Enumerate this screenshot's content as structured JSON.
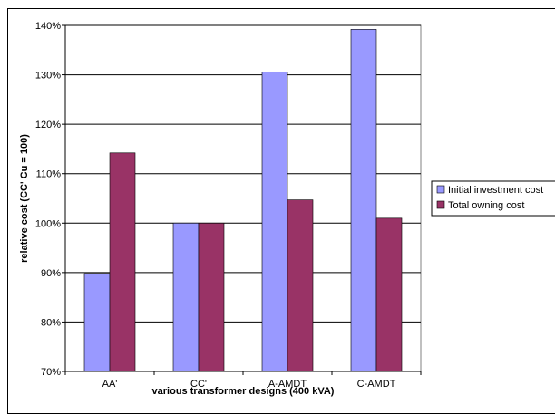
{
  "chart_data": {
    "type": "bar",
    "title": "",
    "xlabel": "various transformer designs (400 kVA)",
    "ylabel": "relative cost (CC' Cu = 100)",
    "categories": [
      "AA'",
      "CC'",
      "A-AMDT",
      "C-AMDT"
    ],
    "yticks": [
      "70%",
      "80%",
      "90%",
      "100%",
      "110%",
      "120%",
      "130%",
      "140%"
    ],
    "ylim": [
      70,
      140
    ],
    "grid": "horizontal",
    "legend_position": "right",
    "series": [
      {
        "name": "Initial investment cost",
        "color": "#9999ff",
        "values": [
          89.8,
          100,
          130.6,
          139.2
        ]
      },
      {
        "name": "Total owning cost",
        "color": "#993366",
        "values": [
          114.2,
          100,
          104.7,
          101.0
        ]
      }
    ]
  }
}
